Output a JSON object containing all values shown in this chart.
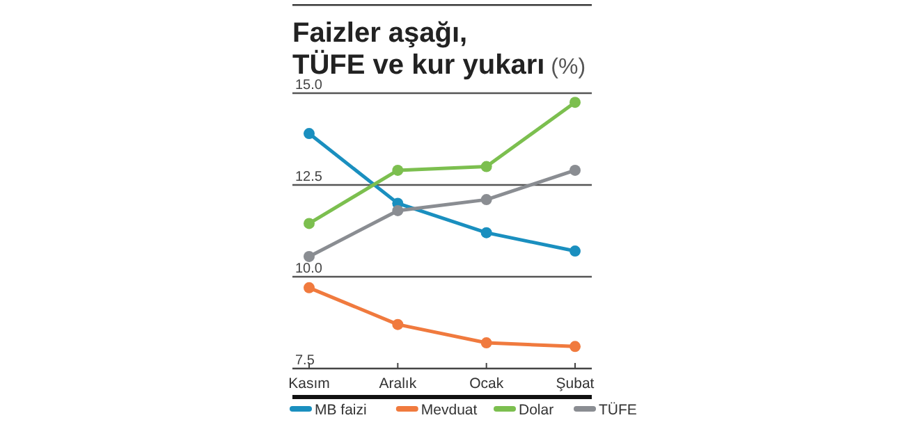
{
  "chart_data": {
    "type": "line",
    "title": "Faizler aşağı, TÜFE ve kur yukarı",
    "subtitle": "(%)",
    "categories": [
      "Kasım",
      "Aralık",
      "Ocak",
      "Şubat"
    ],
    "series": [
      {
        "name": "MB faizi",
        "color": "#1a8fbf",
        "values": [
          13.9,
          12.0,
          11.2,
          10.7
        ]
      },
      {
        "name": "Mevduat",
        "color": "#f07a3e",
        "values": [
          9.7,
          8.7,
          8.2,
          8.1
        ]
      },
      {
        "name": "Dolar",
        "color": "#7cbf4f",
        "values": [
          11.45,
          12.9,
          13.0,
          14.75
        ]
      },
      {
        "name": "TÜFE",
        "color": "#8a8d92",
        "values": [
          10.55,
          11.8,
          12.1,
          12.9
        ]
      }
    ],
    "ylim": [
      7.5,
      15
    ],
    "yticks": [
      {
        "value": 7.5,
        "label": "7.5"
      },
      {
        "value": 10,
        "label": "10.0"
      },
      {
        "value": 12.5,
        "label": "12.5"
      },
      {
        "value": 15,
        "label": "15.0"
      }
    ],
    "grid": "y",
    "marker": "circle",
    "line_style": "solid",
    "legend": "bottom"
  }
}
